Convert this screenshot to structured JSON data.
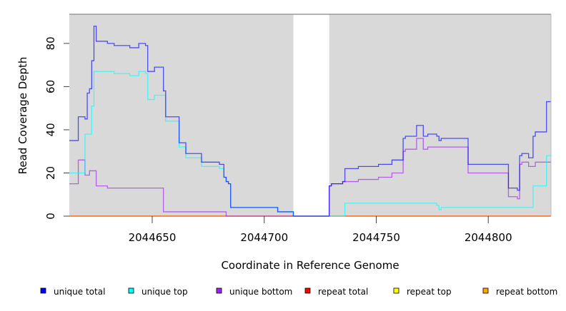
{
  "chart_data": {
    "type": "line",
    "step": true,
    "title": "",
    "xlabel": "Coordinate in Reference Genome",
    "ylabel": "Read Coverage Depth",
    "xlim": [
      2044613,
      2044828
    ],
    "ylim": [
      0,
      93.5
    ],
    "xticks": [
      2044650,
      2044700,
      2044750,
      2044800
    ],
    "xtick_labels": [
      "2044650",
      "2044700",
      "2044750",
      "2044800"
    ],
    "yticks": [
      0,
      20,
      40,
      60,
      80
    ],
    "ytick_labels": [
      "0",
      "20",
      "40",
      "60",
      "80"
    ],
    "masked_region": [
      2044713,
      2044729
    ],
    "legend_position": "bottom",
    "series": [
      {
        "name": "unique total",
        "color": "#0000ff",
        "points": [
          [
            2044613,
            35
          ],
          [
            2044617,
            46
          ],
          [
            2044620,
            45
          ],
          [
            2044621,
            57
          ],
          [
            2044622,
            59
          ],
          [
            2044623,
            72
          ],
          [
            2044624,
            88
          ],
          [
            2044625,
            81
          ],
          [
            2044630,
            80
          ],
          [
            2044633,
            79
          ],
          [
            2044640,
            78
          ],
          [
            2044644,
            80
          ],
          [
            2044647,
            79
          ],
          [
            2044648,
            67
          ],
          [
            2044651,
            69
          ],
          [
            2044655,
            58
          ],
          [
            2044656,
            46
          ],
          [
            2044662,
            34
          ],
          [
            2044665,
            29
          ],
          [
            2044672,
            25
          ],
          [
            2044680,
            24
          ],
          [
            2044682,
            18
          ],
          [
            2044683,
            16
          ],
          [
            2044684,
            15
          ],
          [
            2044685,
            4
          ],
          [
            2044706,
            2
          ],
          [
            2044713,
            0
          ],
          [
            2044729,
            14
          ],
          [
            2044730,
            15
          ],
          [
            2044735,
            16
          ],
          [
            2044736,
            22
          ],
          [
            2044742,
            23
          ],
          [
            2044751,
            24
          ],
          [
            2044757,
            26
          ],
          [
            2044762,
            36
          ],
          [
            2044763,
            37
          ],
          [
            2044768,
            42
          ],
          [
            2044771,
            37
          ],
          [
            2044773,
            38
          ],
          [
            2044777,
            37
          ],
          [
            2044778,
            35
          ],
          [
            2044779,
            36
          ],
          [
            2044791,
            24
          ],
          [
            2044809,
            13
          ],
          [
            2044813,
            12
          ],
          [
            2044814,
            28
          ],
          [
            2044815,
            29
          ],
          [
            2044818,
            27
          ],
          [
            2044820,
            37
          ],
          [
            2044821,
            39
          ],
          [
            2044826,
            53
          ]
        ]
      },
      {
        "name": "unique top",
        "color": "#00ffff",
        "points": [
          [
            2044613,
            20
          ],
          [
            2044620,
            38
          ],
          [
            2044623,
            51
          ],
          [
            2044624,
            67
          ],
          [
            2044633,
            66
          ],
          [
            2044640,
            65
          ],
          [
            2044644,
            67
          ],
          [
            2044647,
            66
          ],
          [
            2044648,
            54
          ],
          [
            2044651,
            56
          ],
          [
            2044656,
            44
          ],
          [
            2044662,
            32
          ],
          [
            2044665,
            27
          ],
          [
            2044672,
            23
          ],
          [
            2044680,
            22
          ],
          [
            2044682,
            18
          ],
          [
            2044683,
            16
          ],
          [
            2044684,
            15
          ],
          [
            2044685,
            4
          ],
          [
            2044706,
            2
          ],
          [
            2044713,
            0
          ],
          [
            2044736,
            6
          ],
          [
            2044777,
            5
          ],
          [
            2044778,
            3
          ],
          [
            2044779,
            4
          ],
          [
            2044820,
            14
          ],
          [
            2044826,
            28
          ]
        ]
      },
      {
        "name": "unique bottom",
        "color": "#a020f0",
        "points": [
          [
            2044613,
            15
          ],
          [
            2044617,
            26
          ],
          [
            2044620,
            19
          ],
          [
            2044622,
            21
          ],
          [
            2044625,
            14
          ],
          [
            2044630,
            13
          ],
          [
            2044655,
            2
          ],
          [
            2044683,
            0
          ],
          [
            2044729,
            14
          ],
          [
            2044730,
            15
          ],
          [
            2044735,
            16
          ],
          [
            2044742,
            17
          ],
          [
            2044751,
            18
          ],
          [
            2044757,
            20
          ],
          [
            2044762,
            30
          ],
          [
            2044763,
            31
          ],
          [
            2044768,
            36
          ],
          [
            2044771,
            31
          ],
          [
            2044773,
            32
          ],
          [
            2044791,
            20
          ],
          [
            2044809,
            9
          ],
          [
            2044813,
            8
          ],
          [
            2044814,
            24
          ],
          [
            2044815,
            25
          ],
          [
            2044818,
            23
          ],
          [
            2044821,
            25
          ]
        ]
      },
      {
        "name": "repeat total",
        "color": "#ff0000",
        "points": [
          [
            2044613,
            0
          ]
        ]
      },
      {
        "name": "repeat top",
        "color": "#ffff00",
        "points": [
          [
            2044613,
            0
          ]
        ]
      },
      {
        "name": "repeat bottom",
        "color": "#ffa500",
        "points": [
          [
            2044613,
            0
          ]
        ]
      }
    ]
  }
}
